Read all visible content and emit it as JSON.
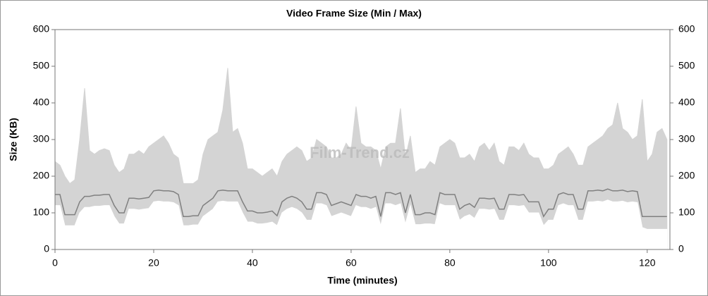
{
  "chart_data": {
    "type": "minmax",
    "title": "Video Frame Size (Min / Max)",
    "xlabel": "Time (minutes)",
    "ylabel": "Size (KB)",
    "watermark": "Film-Trend.cz",
    "xlim": [
      0,
      124.6
    ],
    "xticks": [
      0,
      20,
      40,
      60,
      80,
      100,
      120
    ],
    "ylim": [
      0,
      600
    ],
    "yticks": [
      0,
      100,
      200,
      300,
      400,
      500,
      600
    ],
    "y2lim": [
      0,
      600
    ],
    "y2ticks": [
      0,
      100,
      200,
      300,
      400,
      500,
      600
    ],
    "x": [
      0,
      1,
      2,
      3,
      4,
      5,
      6,
      7,
      8,
      9,
      10,
      11,
      12,
      13,
      14,
      15,
      16,
      17,
      18,
      19,
      20,
      21,
      22,
      23,
      24,
      25,
      26,
      27,
      28,
      29,
      30,
      31,
      32,
      33,
      34,
      35,
      36,
      37,
      38,
      39,
      40,
      41,
      42,
      43,
      44,
      45,
      46,
      47,
      48,
      49,
      50,
      51,
      52,
      53,
      54,
      55,
      56,
      57,
      58,
      59,
      60,
      61,
      62,
      63,
      64,
      65,
      66,
      67,
      68,
      69,
      70,
      71,
      72,
      73,
      74,
      75,
      76,
      77,
      78,
      79,
      80,
      81,
      82,
      83,
      84,
      85,
      86,
      87,
      88,
      89,
      90,
      91,
      92,
      93,
      94,
      95,
      96,
      97,
      98,
      99,
      100,
      101,
      102,
      103,
      104,
      105,
      106,
      107,
      108,
      109,
      110,
      111,
      112,
      113,
      114,
      115,
      116,
      117,
      118,
      119,
      120,
      121,
      122,
      123,
      124
    ],
    "series": [
      {
        "color": "#d4d4d4",
        "role": "upper",
        "values": [
          240,
          230,
          200,
          180,
          190,
          300,
          440,
          270,
          260,
          270,
          275,
          270,
          230,
          210,
          220,
          260,
          260,
          270,
          260,
          280,
          290,
          300,
          310,
          290,
          260,
          250,
          180,
          180,
          180,
          190,
          260,
          300,
          310,
          320,
          380,
          495,
          320,
          330,
          290,
          220,
          220,
          210,
          200,
          210,
          220,
          200,
          240,
          260,
          270,
          280,
          270,
          240,
          250,
          300,
          290,
          280,
          250,
          250,
          260,
          290,
          270,
          390,
          290,
          280,
          280,
          270,
          220,
          280,
          290,
          290,
          385,
          250,
          310,
          210,
          220,
          220,
          240,
          230,
          280,
          290,
          300,
          290,
          250,
          250,
          260,
          240,
          280,
          290,
          270,
          290,
          240,
          230,
          280,
          280,
          270,
          290,
          260,
          250,
          250,
          220,
          220,
          230,
          260,
          270,
          280,
          260,
          230,
          230,
          280,
          290,
          300,
          310,
          330,
          340,
          400,
          330,
          320,
          300,
          310,
          410,
          240,
          260,
          320,
          330,
          300
        ]
      },
      {
        "color": "#ffffff",
        "role": "lower",
        "values": [
          120,
          120,
          65,
          65,
          65,
          100,
          115,
          115,
          118,
          118,
          120,
          120,
          90,
          70,
          70,
          110,
          110,
          108,
          110,
          112,
          130,
          132,
          130,
          130,
          128,
          120,
          65,
          65,
          67,
          67,
          90,
          100,
          110,
          130,
          132,
          130,
          130,
          130,
          100,
          75,
          75,
          70,
          70,
          72,
          75,
          65,
          100,
          110,
          115,
          110,
          100,
          80,
          80,
          125,
          125,
          120,
          90,
          95,
          100,
          95,
          90,
          120,
          115,
          115,
          110,
          115,
          65,
          125,
          125,
          120,
          125,
          70,
          120,
          68,
          68,
          70,
          70,
          68,
          125,
          120,
          120,
          120,
          80,
          90,
          95,
          85,
          110,
          110,
          108,
          110,
          80,
          80,
          120,
          120,
          118,
          120,
          100,
          100,
          100,
          65,
          80,
          80,
          120,
          125,
          120,
          120,
          80,
          80,
          130,
          130,
          132,
          130,
          135,
          130,
          130,
          132,
          128,
          130,
          128,
          60,
          55,
          55,
          55,
          55,
          55
        ]
      },
      {
        "color": "#808080",
        "role": "line",
        "values": [
          150,
          150,
          95,
          95,
          95,
          130,
          145,
          145,
          148,
          148,
          150,
          150,
          120,
          100,
          100,
          140,
          140,
          138,
          140,
          142,
          160,
          162,
          160,
          160,
          158,
          150,
          90,
          90,
          92,
          92,
          120,
          130,
          140,
          160,
          162,
          160,
          160,
          160,
          130,
          105,
          105,
          100,
          100,
          102,
          105,
          92,
          130,
          140,
          145,
          140,
          130,
          110,
          110,
          155,
          155,
          150,
          120,
          125,
          130,
          125,
          120,
          150,
          145,
          145,
          140,
          145,
          90,
          155,
          155,
          150,
          155,
          100,
          150,
          95,
          95,
          100,
          100,
          95,
          155,
          150,
          150,
          150,
          110,
          120,
          125,
          115,
          140,
          140,
          138,
          140,
          110,
          110,
          150,
          150,
          148,
          150,
          130,
          130,
          130,
          90,
          110,
          110,
          150,
          155,
          150,
          150,
          110,
          110,
          160,
          160,
          162,
          160,
          165,
          160,
          160,
          162,
          158,
          160,
          158,
          90,
          90,
          90,
          90,
          90,
          90
        ]
      }
    ]
  }
}
